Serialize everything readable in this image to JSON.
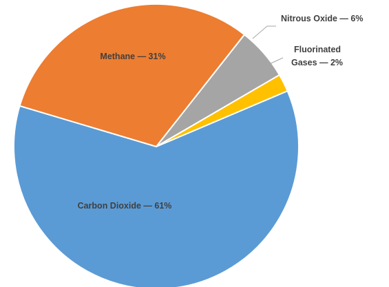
{
  "chart_data": {
    "type": "pie",
    "title": "",
    "slices": [
      {
        "name": "Carbon Dioxide",
        "value": 61,
        "label": "Carbon Dioxide — 61%",
        "color": "#5b9bd5"
      },
      {
        "name": "Methane",
        "value": 31,
        "label": "Methane — 31%",
        "color": "#ed7d31"
      },
      {
        "name": "Nitrous Oxide",
        "value": 6,
        "label": "Nitrous Oxide — 6%",
        "color": "#a5a5a5"
      },
      {
        "name": "Fluorinated Gases",
        "value": 2,
        "label_lines": [
          "Fluorinated",
          "Gases — 2%"
        ],
        "color": "#ffc000"
      }
    ],
    "legend": "none",
    "data_labels": "category name and percentage"
  }
}
